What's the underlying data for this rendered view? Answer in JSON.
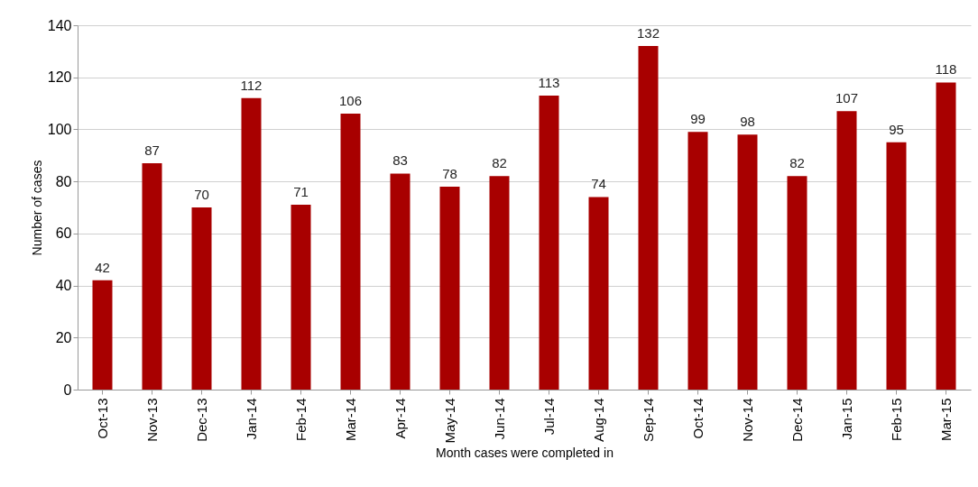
{
  "chart_data": {
    "type": "bar",
    "xlabel": "Month cases were completed in",
    "ylabel": "Number of cases",
    "categories": [
      "Oct-13",
      "Nov-13",
      "Dec-13",
      "Jan-14",
      "Feb-14",
      "Mar-14",
      "Apr-14",
      "May-14",
      "Jun-14",
      "Jul-14",
      "Aug-14",
      "Sep-14",
      "Oct-14",
      "Nov-14",
      "Dec-14",
      "Jan-15",
      "Feb-15",
      "Mar-15"
    ],
    "values": [
      42,
      87,
      70,
      112,
      71,
      106,
      83,
      78,
      82,
      113,
      74,
      132,
      99,
      98,
      82,
      107,
      95,
      118
    ],
    "color": "#a80000",
    "ylim": [
      0,
      140
    ],
    "yticks": [
      0,
      20,
      40,
      60,
      80,
      100,
      120,
      140
    ],
    "grid": "y",
    "data_labels": true
  }
}
